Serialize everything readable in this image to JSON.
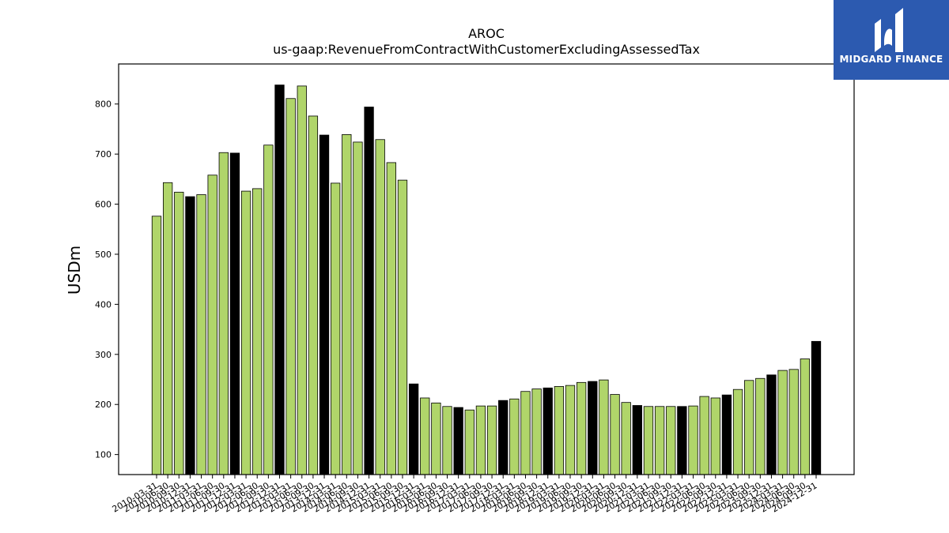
{
  "chart_data": {
    "type": "bar",
    "title": "AROC",
    "subtitle": "us-gaap:RevenueFromContractWithCustomerExcludingAssessedTax",
    "ylabel": "USDm",
    "xlabel": "",
    "ylim": [
      60,
      880
    ],
    "yticks": [
      100,
      200,
      300,
      400,
      500,
      600,
      700,
      800
    ],
    "grid": false,
    "colors": {
      "quarter": "#b0d56a",
      "year_end": "#000000",
      "edge": "#000000"
    },
    "categories": [
      "2010-03-31",
      "2010-06-30",
      "2010-09-30",
      "2010-12-31",
      "2011-03-31",
      "2011-06-30",
      "2011-09-30",
      "2011-12-31",
      "2012-03-31",
      "2012-06-30",
      "2012-09-30",
      "2012-12-31",
      "2013-03-31",
      "2013-06-30",
      "2013-09-30",
      "2013-12-31",
      "2014-03-31",
      "2014-06-30",
      "2014-09-30",
      "2014-12-31",
      "2015-03-31",
      "2015-06-30",
      "2015-09-30",
      "2015-12-31",
      "2016-03-31",
      "2016-06-30",
      "2016-09-30",
      "2016-12-31",
      "2017-03-31",
      "2017-06-30",
      "2017-09-30",
      "2017-12-31",
      "2018-03-31",
      "2018-06-30",
      "2018-09-30",
      "2018-12-31",
      "2019-03-31",
      "2019-06-30",
      "2019-09-30",
      "2019-12-31",
      "2020-03-31",
      "2020-06-30",
      "2020-09-30",
      "2020-12-31",
      "2021-03-31",
      "2021-06-30",
      "2021-09-30",
      "2021-12-31",
      "2022-03-31",
      "2022-06-30",
      "2022-09-30",
      "2022-12-31",
      "2023-03-31",
      "2023-06-30",
      "2023-09-30",
      "2023-12-31",
      "2024-03-31",
      "2024-06-30",
      "2024-09-30",
      "2024-12-31"
    ],
    "values": [
      576,
      643,
      624,
      615,
      619,
      658,
      703,
      702,
      626,
      631,
      718,
      838,
      811,
      836,
      776,
      738,
      642,
      739,
      724,
      794,
      729,
      683,
      648,
      241,
      213,
      203,
      196,
      194,
      189,
      197,
      197,
      208,
      211,
      226,
      231,
      233,
      236,
      238,
      244,
      246,
      249,
      220,
      204,
      198,
      196,
      196,
      196,
      196,
      197,
      216,
      213,
      219,
      230,
      248,
      252,
      259,
      268,
      270,
      291,
      326
    ]
  },
  "logo": {
    "text": "MIDGARD FINANCE"
  }
}
